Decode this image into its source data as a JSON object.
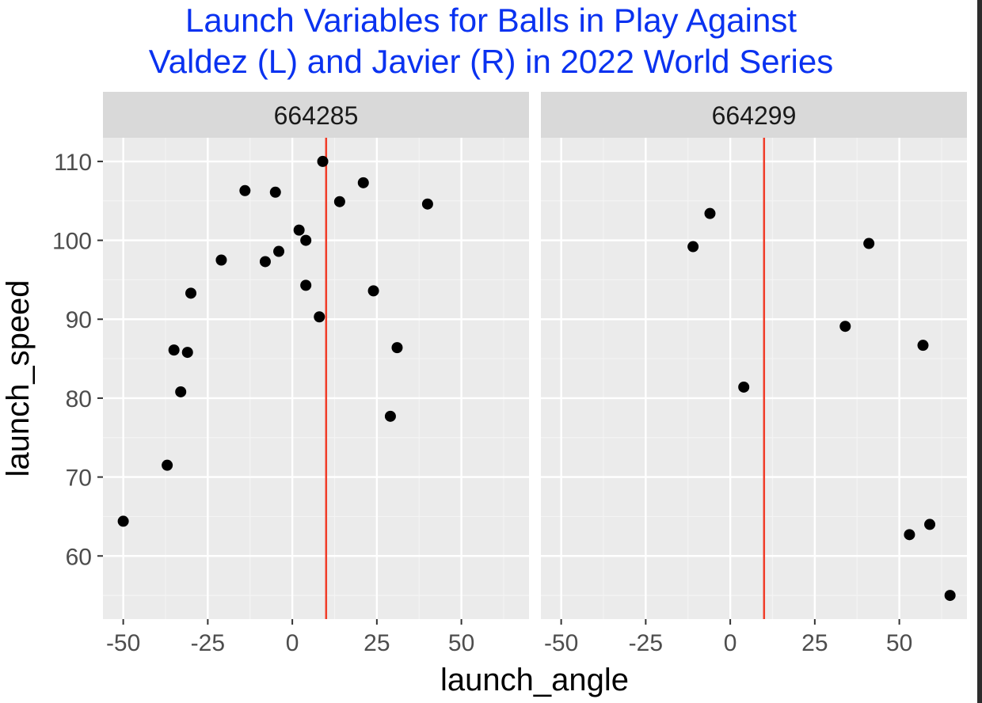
{
  "colors": {
    "title": "#0a32f0",
    "panel_bg": "#ebebeb",
    "strip_bg": "#d9d9d9",
    "grid_major": "#ffffff",
    "grid_minor": "#f4f4f4",
    "point": "#000000",
    "ref_line": "#f03c28",
    "tick_text": "#4d4d4d",
    "axis_title": "#000000",
    "strip_text": "#1a1a1a"
  },
  "chart_data": {
    "type": "scatter",
    "title_lines": [
      "Launch Variables for Balls in Play Against",
      "Valdez (L) and Javier (R) in 2022 World Series"
    ],
    "xlabel": "launch_angle",
    "ylabel": "launch_speed",
    "xlim": [
      -56,
      70
    ],
    "ylim": [
      52,
      113
    ],
    "x_ticks": [
      -50,
      -25,
      0,
      25,
      50
    ],
    "x_tick_labels": [
      "-50",
      "-25",
      "0",
      "25",
      "50"
    ],
    "y_ticks": [
      60,
      70,
      80,
      90,
      100,
      110
    ],
    "y_tick_labels": [
      "60",
      "70",
      "80",
      "90",
      "100",
      "110"
    ],
    "grid": true,
    "reference_line_x": 10,
    "facets": [
      {
        "label": "664285",
        "points": [
          [
            -50,
            64.4
          ],
          [
            -37,
            71.5
          ],
          [
            -33,
            80.8
          ],
          [
            -35,
            86.1
          ],
          [
            -31,
            85.8
          ],
          [
            -30,
            93.3
          ],
          [
            -21,
            97.5
          ],
          [
            -14,
            106.3
          ],
          [
            -8,
            97.3
          ],
          [
            -5,
            106.1
          ],
          [
            -4,
            98.6
          ],
          [
            2,
            101.3
          ],
          [
            4,
            100
          ],
          [
            4,
            94.3
          ],
          [
            8,
            90.3
          ],
          [
            9,
            110
          ],
          [
            14,
            104.9
          ],
          [
            21,
            107.3
          ],
          [
            24,
            93.6
          ],
          [
            29,
            77.7
          ],
          [
            31,
            86.4
          ],
          [
            40,
            104.6
          ]
        ]
      },
      {
        "label": "664299",
        "points": [
          [
            -11,
            99.2
          ],
          [
            -6,
            103.4
          ],
          [
            4,
            81.4
          ],
          [
            34,
            89.1
          ],
          [
            41,
            99.6
          ],
          [
            57,
            86.7
          ],
          [
            53,
            62.7
          ],
          [
            59,
            64
          ],
          [
            65,
            55
          ]
        ]
      }
    ]
  }
}
